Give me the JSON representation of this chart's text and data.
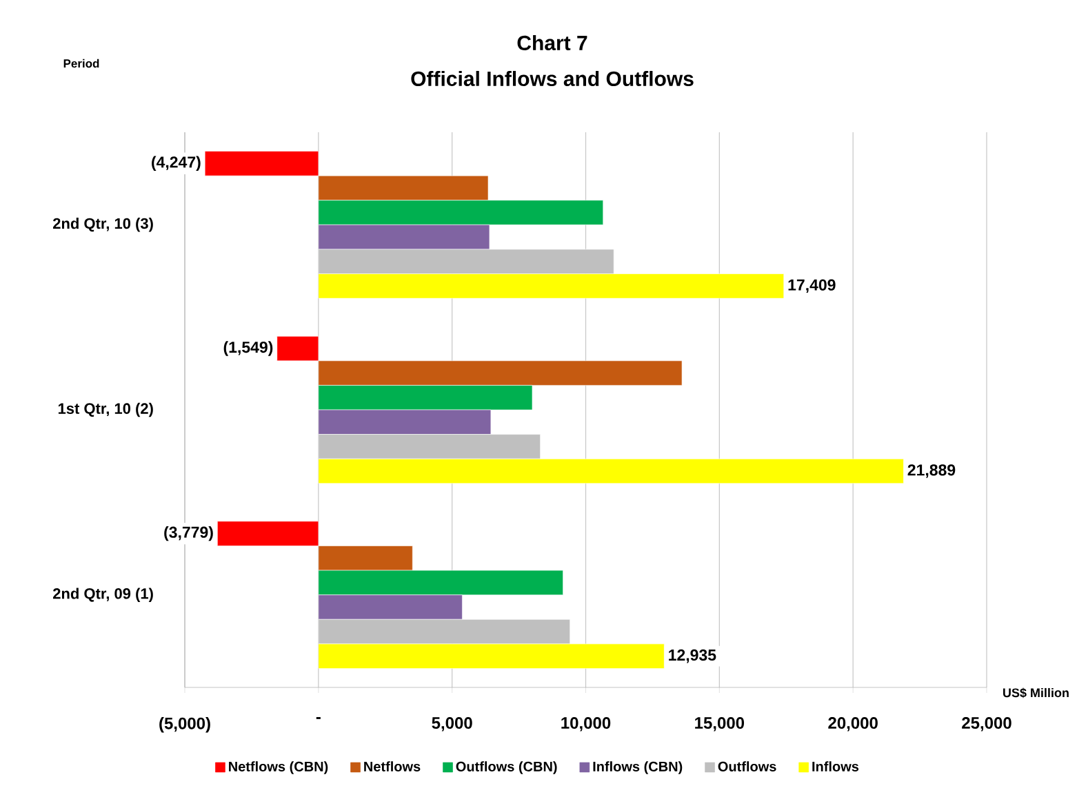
{
  "chart_data": {
    "type": "bar",
    "orientation": "horizontal",
    "title": "Chart 7",
    "subtitle": "Official Inflows and Outflows",
    "xlabel": "US$ Million",
    "annotations": [
      "Period"
    ],
    "categories": [
      "2nd Qtr, 10 (3)",
      "1st Qtr, 10 (2)",
      "2nd Qtr, 09 (1)"
    ],
    "series": [
      {
        "name": "Netflows (CBN)",
        "color": "#ff0000",
        "values": [
          -4247,
          -1549,
          -3779
        ],
        "value_labels": [
          "(4,247)",
          "(1,549)",
          "(3,779)"
        ]
      },
      {
        "name": "Netflows",
        "color": "#c55a11",
        "values": [
          6350,
          13600,
          3520
        ]
      },
      {
        "name": "Outflows (CBN)",
        "color": "#00b050",
        "values": [
          10650,
          8000,
          9150
        ]
      },
      {
        "name": "Inflows (CBN)",
        "color": "#8064a2",
        "values": [
          6400,
          6450,
          5380
        ]
      },
      {
        "name": "Outflows",
        "color": "#bfbfbf",
        "values": [
          11050,
          8300,
          9410
        ]
      },
      {
        "name": "Inflows",
        "color": "#ffff00",
        "values": [
          17409,
          21889,
          12935
        ],
        "value_labels": [
          "17,409",
          "21,889",
          "12,935"
        ]
      }
    ],
    "xlim": [
      -5000,
      25000
    ],
    "xticks": [
      {
        "value": -5000,
        "label": "(5,000)"
      },
      {
        "value": 0,
        "label": "-"
      },
      {
        "value": 5000,
        "label": "5,000"
      },
      {
        "value": 10000,
        "label": "10,000"
      },
      {
        "value": 15000,
        "label": "15,000"
      },
      {
        "value": 20000,
        "label": "20,000"
      },
      {
        "value": 25000,
        "label": "25,000"
      }
    ],
    "grid": "x",
    "legend": "bottom"
  }
}
